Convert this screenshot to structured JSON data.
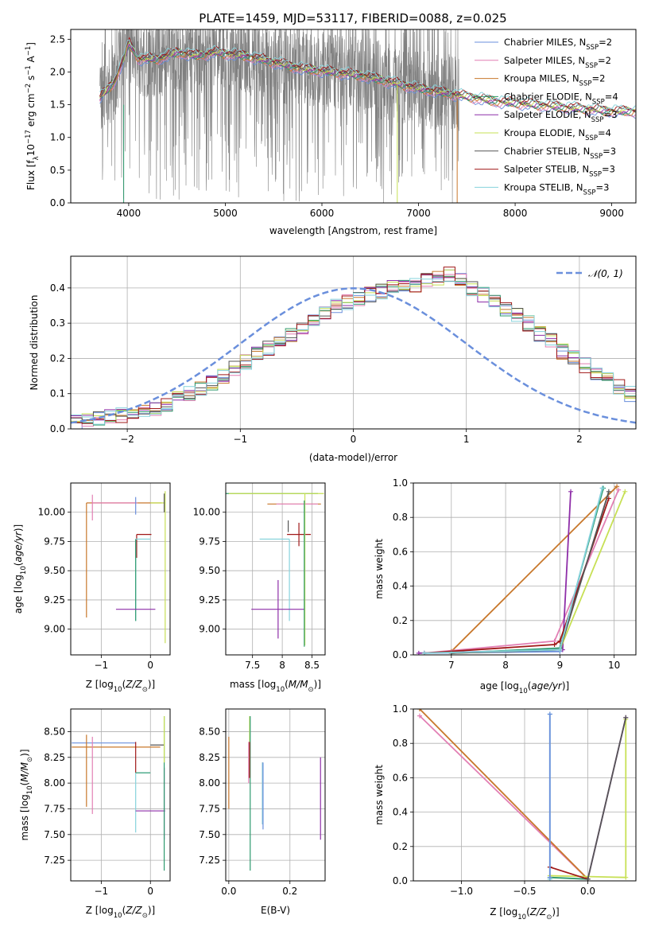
{
  "title": "PLATE=1459, MJD=53117, FIBERID=0088, z=0.025",
  "colors": {
    "chabrier_miles": "#6a8fdc",
    "salpeter_miles": "#e27fb4",
    "kroupa_miles": "#c8782c",
    "chabrier_elodie": "#2e9a6e",
    "salpeter_elodie": "#8e2ea8",
    "kroupa_elodie": "#c7e055",
    "chabrier_stelib": "#555555",
    "salpeter_stelib": "#a01818",
    "kroupa_stelib": "#86d3dc",
    "spectrum": "#808080",
    "normal_curve": "#6a8fdc"
  },
  "legend": [
    {
      "label": "Chabrier MILES, N",
      "sub": "SSP",
      "tail": "=2",
      "color": "#6a8fdc"
    },
    {
      "label": "Salpeter MILES, N",
      "sub": "SSP",
      "tail": "=2",
      "color": "#e27fb4"
    },
    {
      "label": "Kroupa MILES, N",
      "sub": "SSP",
      "tail": "=2",
      "color": "#c8782c"
    },
    {
      "label": "Chabrier ELODIE, N",
      "sub": "SSP",
      "tail": "=4",
      "color": "#2e9a6e"
    },
    {
      "label": "Salpeter ELODIE, N",
      "sub": "SSP",
      "tail": "=3",
      "color": "#8e2ea8"
    },
    {
      "label": "Kroupa ELODIE, N",
      "sub": "SSP",
      "tail": "=4",
      "color": "#c7e055"
    },
    {
      "label": "Chabrier STELIB, N",
      "sub": "SSP",
      "tail": "=3",
      "color": "#555555"
    },
    {
      "label": "Salpeter STELIB, N",
      "sub": "SSP",
      "tail": "=3",
      "color": "#a01818"
    },
    {
      "label": "Kroupa STELIB, N",
      "sub": "SSP",
      "tail": "=3",
      "color": "#86d3dc"
    }
  ],
  "chart_data": [
    {
      "id": "spectrum",
      "type": "line",
      "title": "PLATE=1459, MJD=53117, FIBERID=0088, z=0.025",
      "xlabel": "wavelength [Angstrom, rest frame]",
      "ylabel_main": "Flux [f",
      "ylabel_sub": "λ",
      "ylabel_tail": "10",
      "ylabel_exp": "−17",
      "ylabel_end": " erg cm",
      "xlim": [
        3400,
        9250
      ],
      "ylim": [
        0,
        2.65
      ],
      "xticks": [
        4000,
        5000,
        6000,
        7000,
        8000,
        9000
      ],
      "yticks": [
        0.0,
        0.5,
        1.0,
        1.5,
        2.0,
        2.5
      ],
      "data_range": [
        3700,
        7420
      ],
      "model_points": [
        {
          "x": 3700,
          "y": 1.6
        },
        {
          "x": 3850,
          "y": 1.85
        },
        {
          "x": 3950,
          "y": 2.2
        },
        {
          "x": 4000,
          "y": 2.45
        },
        {
          "x": 4100,
          "y": 2.2
        },
        {
          "x": 4300,
          "y": 2.2
        },
        {
          "x": 4500,
          "y": 2.3
        },
        {
          "x": 4700,
          "y": 2.25
        },
        {
          "x": 4900,
          "y": 2.3
        },
        {
          "x": 5200,
          "y": 2.25
        },
        {
          "x": 5500,
          "y": 2.15
        },
        {
          "x": 5800,
          "y": 2.05
        },
        {
          "x": 6100,
          "y": 2.0
        },
        {
          "x": 6400,
          "y": 1.95
        },
        {
          "x": 6700,
          "y": 1.85
        },
        {
          "x": 7000,
          "y": 1.75
        },
        {
          "x": 7400,
          "y": 1.65
        },
        {
          "x": 7800,
          "y": 1.55
        },
        {
          "x": 8200,
          "y": 1.5
        },
        {
          "x": 8600,
          "y": 1.45
        },
        {
          "x": 9000,
          "y": 1.4
        }
      ]
    },
    {
      "id": "residuals",
      "type": "histogram",
      "xlabel": "(data-model)/error",
      "ylabel": "Normed distribution",
      "xlim": [
        -2.5,
        2.5
      ],
      "ylim": [
        0,
        0.49
      ],
      "xticks": [
        -2,
        -1,
        0,
        1,
        2
      ],
      "yticks": [
        0.0,
        0.1,
        0.2,
        0.3,
        0.4
      ],
      "legend_label": "𝒩(0, 1)",
      "bin_width": 0.1,
      "bin_start": -2.5,
      "base_heights": [
        0.02,
        0.025,
        0.03,
        0.035,
        0.04,
        0.05,
        0.055,
        0.06,
        0.07,
        0.085,
        0.1,
        0.115,
        0.13,
        0.15,
        0.17,
        0.19,
        0.21,
        0.23,
        0.25,
        0.27,
        0.29,
        0.31,
        0.33,
        0.35,
        0.36,
        0.37,
        0.38,
        0.39,
        0.4,
        0.41,
        0.41,
        0.42,
        0.43,
        0.44,
        0.42,
        0.4,
        0.38,
        0.36,
        0.34,
        0.32,
        0.3,
        0.27,
        0.25,
        0.22,
        0.2,
        0.18,
        0.16,
        0.14,
        0.12,
        0.1,
        0.09,
        0.075,
        0.06,
        0.05,
        0.04,
        0.035,
        0.03,
        0.025,
        0.02,
        0.02
      ]
    },
    {
      "id": "age_vs_Z",
      "type": "errorbar",
      "xlabel": "Z [log",
      "ylabel": "age  [log",
      "xlim": [
        -1.62,
        0.4
      ],
      "ylim": [
        8.78,
        10.25
      ],
      "xticks": [
        -1,
        0
      ],
      "yticks": [
        9.0,
        9.25,
        9.5,
        9.75,
        10.0
      ]
    },
    {
      "id": "age_vs_mass",
      "type": "errorbar",
      "xlabel": "mass [log",
      "ylabel": "",
      "xlim": [
        7.05,
        8.72
      ],
      "ylim": [
        8.78,
        10.25
      ],
      "xticks": [
        7.5,
        8.0,
        8.5
      ],
      "yticks": [
        9.0,
        9.25,
        9.5,
        9.75,
        10.0
      ]
    },
    {
      "id": "weight_vs_age",
      "type": "line",
      "xlabel": "age  [log",
      "ylabel": "mass weight",
      "xlim": [
        6.3,
        10.4
      ],
      "ylim": [
        0,
        1.0
      ],
      "xticks": [
        7,
        8,
        9,
        10
      ],
      "yticks": [
        0.0,
        0.2,
        0.4,
        0.6,
        0.8,
        1.0
      ]
    },
    {
      "id": "mass_vs_Z",
      "type": "errorbar",
      "xlabel": "Z [log",
      "ylabel": "mass [log",
      "xlim": [
        -1.62,
        0.4
      ],
      "ylim": [
        7.05,
        8.72
      ],
      "xticks": [
        -1,
        0
      ],
      "yticks": [
        7.25,
        7.5,
        7.75,
        8.0,
        8.25,
        8.5
      ]
    },
    {
      "id": "mass_vs_ebv",
      "type": "errorbar",
      "xlabel": "E(B-V)",
      "ylabel": "",
      "xlim": [
        -0.01,
        0.315
      ],
      "ylim": [
        7.05,
        8.72
      ],
      "xticks": [
        0.0,
        0.2
      ],
      "yticks": [
        7.25,
        7.5,
        7.75,
        8.0,
        8.25,
        8.5
      ]
    },
    {
      "id": "weight_vs_Z",
      "type": "line",
      "xlabel": "Z [log",
      "ylabel": "mass weight",
      "xlim": [
        -1.38,
        0.38
      ],
      "ylim": [
        0,
        1.0
      ],
      "xticks": [
        -1.0,
        -0.5,
        0.0
      ],
      "yticks": [
        0.0,
        0.2,
        0.4,
        0.6,
        0.8,
        1.0
      ]
    }
  ]
}
